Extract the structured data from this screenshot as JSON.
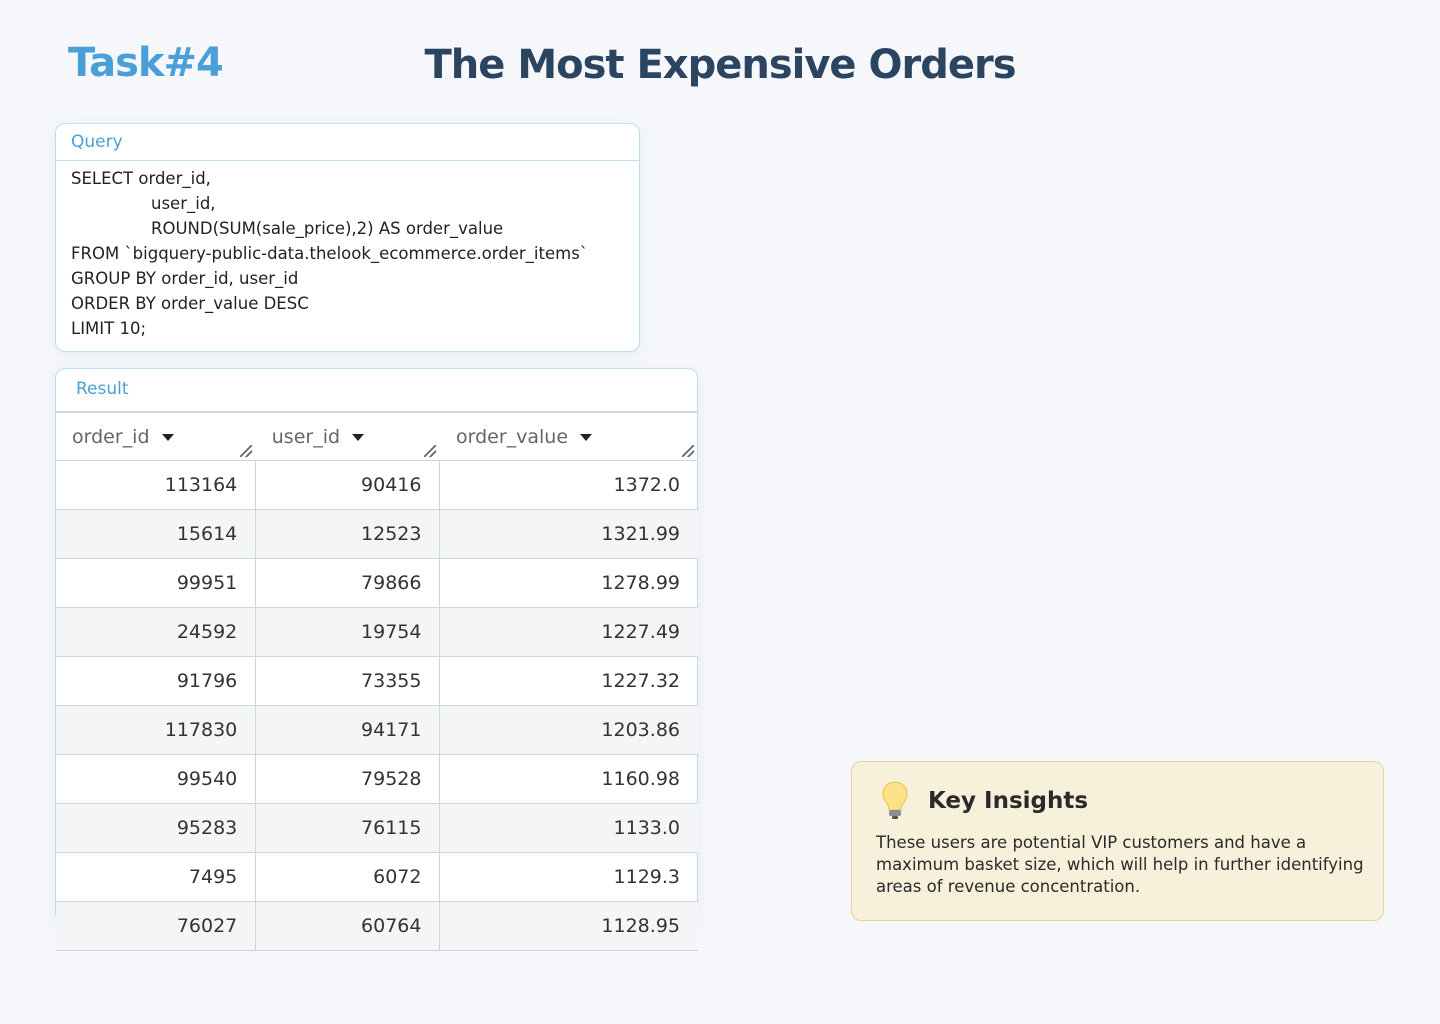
{
  "header": {
    "task": "Task#4",
    "title": "The Most Expensive Orders"
  },
  "query": {
    "label": "Query",
    "lines": [
      "SELECT  order_id,",
      "user_id,",
      "ROUND(SUM(sale_price),2) AS order_value",
      "FROM `bigquery-public-data.thelook_ecommerce.order_items`",
      "GROUP BY order_id, user_id",
      "ORDER BY order_value DESC",
      "LIMIT 10;"
    ]
  },
  "result": {
    "label": "Result",
    "table": {
      "columns": [
        "order_id",
        "user_id",
        "order_value"
      ],
      "rows": [
        [
          "113164",
          "90416",
          "1372.0"
        ],
        [
          "15614",
          "12523",
          "1321.99"
        ],
        [
          "99951",
          "79866",
          "1278.99"
        ],
        [
          "24592",
          "19754",
          "1227.49"
        ],
        [
          "91796",
          "73355",
          "1227.32"
        ],
        [
          "117830",
          "94171",
          "1203.86"
        ],
        [
          "99540",
          "79528",
          "1160.98"
        ],
        [
          "95283",
          "76115",
          "1133.0"
        ],
        [
          "7495",
          "6072",
          "1129.3"
        ],
        [
          "76027",
          "60764",
          "1128.95"
        ]
      ]
    }
  },
  "insights": {
    "title": "Key Insights",
    "text": "These users are potential VIP customers and have a maximum basket size, which will help in further identifying areas of revenue concentration."
  }
}
